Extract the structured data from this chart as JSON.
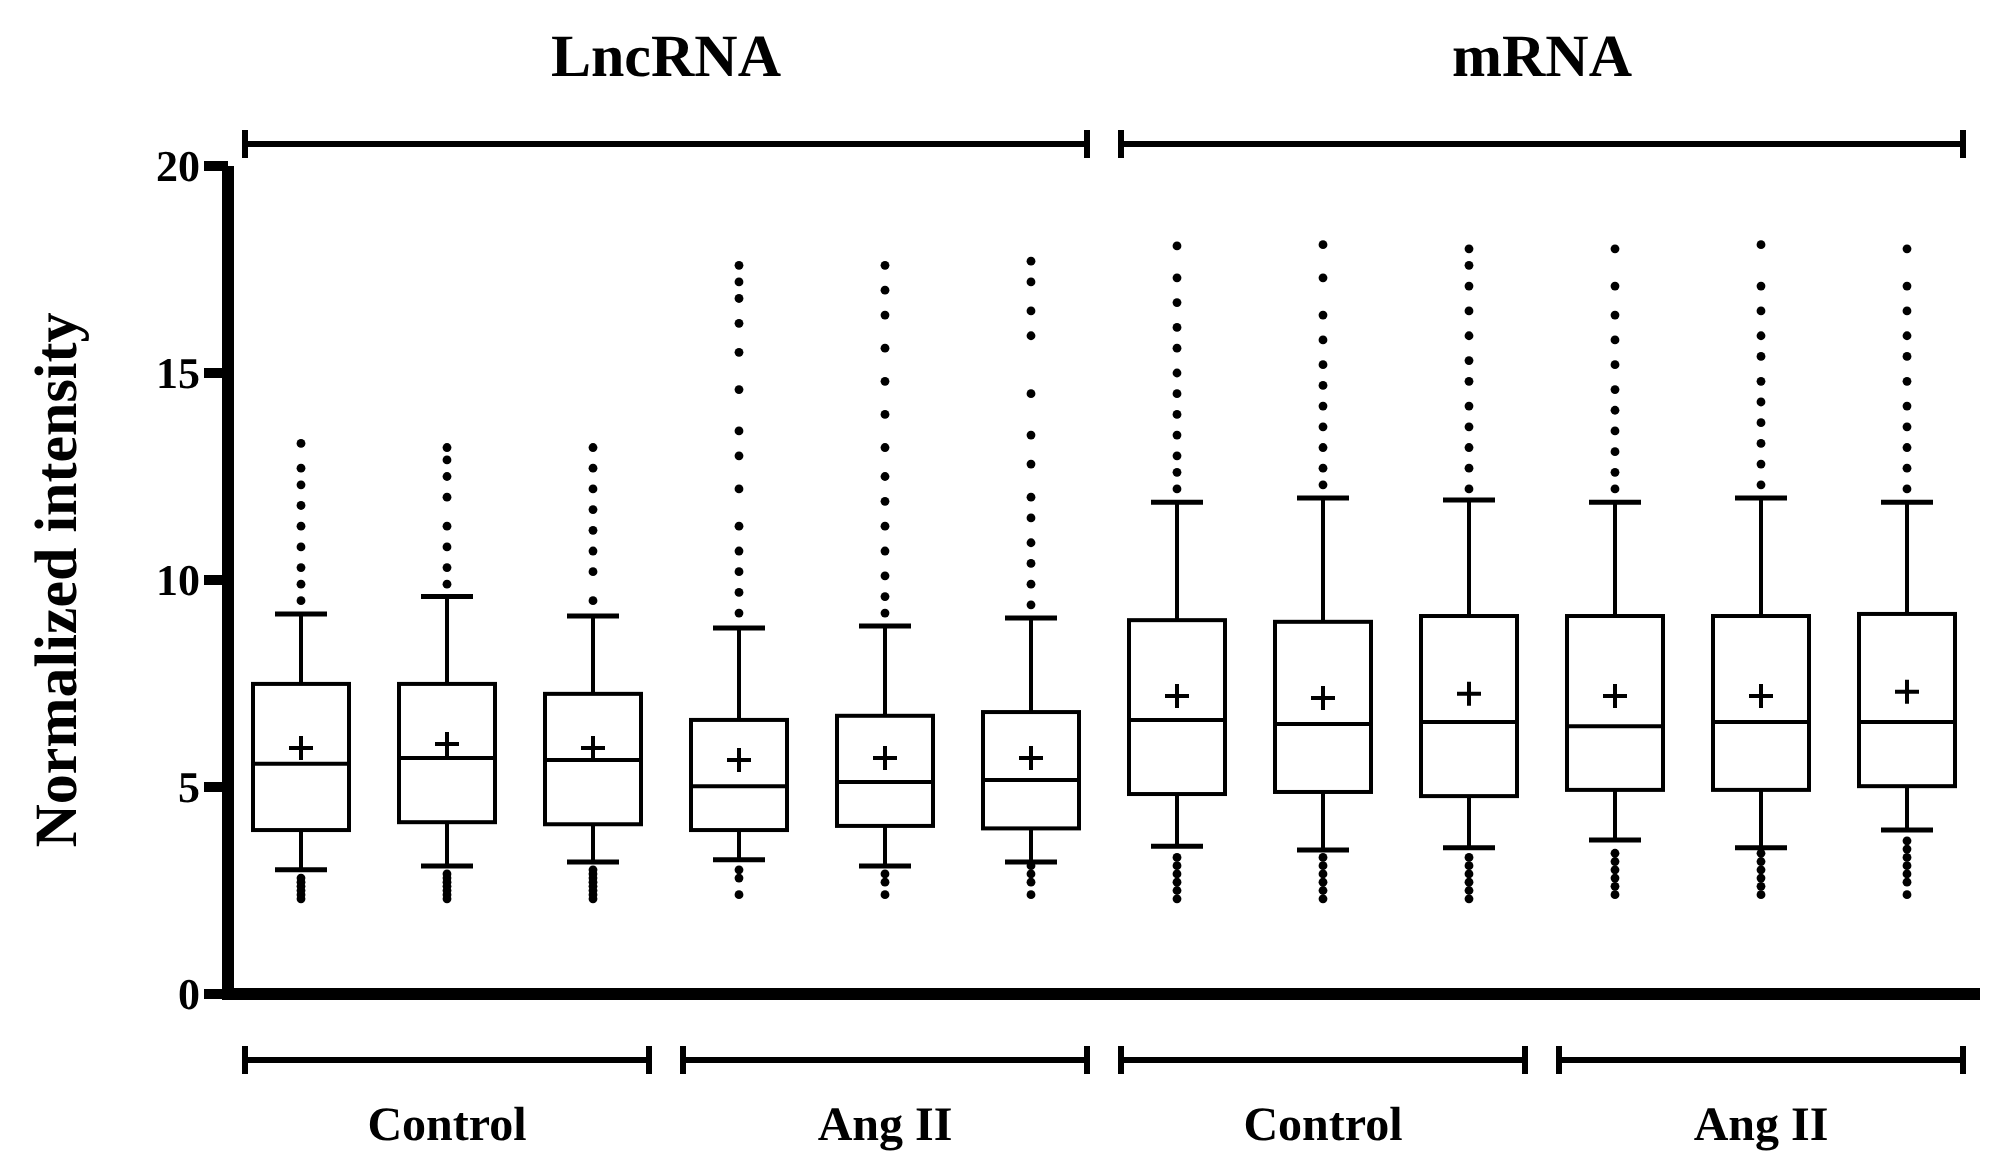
{
  "chart_data": {
    "type": "box",
    "ylabel": "Normalized intensity",
    "categories": [
      null,
      null,
      null,
      null,
      null,
      null,
      null,
      null,
      null,
      null,
      null,
      null
    ],
    "ylim": [
      0,
      20
    ],
    "yticks": [
      0,
      5,
      10,
      15,
      20
    ],
    "grid": false,
    "annotations": [
      "LncRNA",
      "mRNA",
      "Control",
      "Ang II",
      "Control",
      "Ang II"
    ],
    "boxes": [
      {
        "low": 3.0,
        "q1": 3.96,
        "median": 5.56,
        "q3": 7.49,
        "high": 9.18,
        "mean": 5.94,
        "outliers": [
          2.3,
          2.4,
          2.5,
          2.6,
          2.7,
          2.8,
          9.5,
          9.9,
          10.3,
          10.8,
          11.3,
          11.8,
          12.3,
          12.7,
          13.3
        ]
      },
      {
        "low": 3.09,
        "q1": 4.15,
        "median": 5.7,
        "q3": 7.49,
        "high": 9.6,
        "mean": 6.04,
        "outliers": [
          2.3,
          2.4,
          2.5,
          2.6,
          2.7,
          2.8,
          2.9,
          9.9,
          10.3,
          10.8,
          11.3,
          12.0,
          12.5,
          12.9,
          13.2
        ]
      },
      {
        "low": 3.19,
        "q1": 4.1,
        "median": 5.65,
        "q3": 7.25,
        "high": 9.13,
        "mean": 5.94,
        "outliers": [
          2.3,
          2.4,
          2.5,
          2.6,
          2.7,
          2.8,
          2.9,
          3.0,
          9.5,
          10.2,
          10.7,
          11.2,
          11.7,
          12.2,
          12.7,
          13.2
        ]
      },
      {
        "low": 3.24,
        "q1": 3.96,
        "median": 5.02,
        "q3": 6.62,
        "high": 8.84,
        "mean": 5.65,
        "outliers": [
          2.4,
          2.8,
          3.0,
          9.2,
          9.7,
          10.2,
          10.7,
          11.3,
          12.2,
          13.0,
          13.6,
          14.6,
          15.5,
          16.2,
          16.8,
          17.2,
          17.6
        ]
      },
      {
        "low": 3.09,
        "q1": 4.06,
        "median": 5.12,
        "q3": 6.72,
        "high": 8.89,
        "mean": 5.7,
        "outliers": [
          2.4,
          2.7,
          2.9,
          9.2,
          9.6,
          10.1,
          10.7,
          11.3,
          11.9,
          12.5,
          13.2,
          14.0,
          14.8,
          15.6,
          16.4,
          17.0,
          17.6
        ]
      },
      {
        "low": 3.19,
        "q1": 4.0,
        "median": 5.17,
        "q3": 6.81,
        "high": 9.08,
        "mean": 5.7,
        "outliers": [
          2.4,
          2.7,
          2.9,
          3.1,
          9.4,
          9.9,
          10.4,
          10.9,
          11.5,
          12.0,
          12.8,
          13.5,
          14.5,
          15.9,
          16.5,
          17.2,
          17.7
        ]
      },
      {
        "low": 3.57,
        "q1": 4.83,
        "median": 6.62,
        "q3": 9.03,
        "high": 11.88,
        "mean": 7.2,
        "outliers": [
          2.3,
          2.5,
          2.7,
          2.9,
          3.1,
          3.3,
          12.2,
          12.6,
          13.0,
          13.5,
          14.0,
          14.5,
          15.0,
          15.6,
          16.1,
          16.7,
          17.3,
          18.07
        ]
      },
      {
        "low": 3.48,
        "q1": 4.88,
        "median": 6.52,
        "q3": 8.99,
        "high": 11.98,
        "mean": 7.15,
        "outliers": [
          2.3,
          2.5,
          2.7,
          2.9,
          3.1,
          3.3,
          12.3,
          12.7,
          13.2,
          13.7,
          14.2,
          14.7,
          15.2,
          15.8,
          16.4,
          17.3,
          18.1
        ]
      },
      {
        "low": 3.53,
        "q1": 4.78,
        "median": 6.57,
        "q3": 9.13,
        "high": 11.93,
        "mean": 7.25,
        "outliers": [
          2.3,
          2.5,
          2.7,
          2.9,
          3.1,
          3.3,
          12.2,
          12.7,
          13.2,
          13.7,
          14.2,
          14.8,
          15.3,
          15.9,
          16.5,
          17.1,
          17.6,
          18.0
        ]
      },
      {
        "low": 3.72,
        "q1": 4.93,
        "median": 6.47,
        "q3": 9.13,
        "high": 11.88,
        "mean": 7.2,
        "outliers": [
          2.4,
          2.6,
          2.8,
          3.0,
          3.2,
          3.4,
          12.2,
          12.6,
          13.1,
          13.6,
          14.1,
          14.6,
          15.2,
          15.8,
          16.4,
          17.1,
          18.0
        ]
      },
      {
        "low": 3.53,
        "q1": 4.93,
        "median": 6.57,
        "q3": 9.13,
        "high": 11.98,
        "mean": 7.2,
        "outliers": [
          2.4,
          2.6,
          2.8,
          3.0,
          3.2,
          3.4,
          12.3,
          12.8,
          13.3,
          13.8,
          14.3,
          14.8,
          15.4,
          15.9,
          16.5,
          17.1,
          18.1
        ]
      },
      {
        "low": 3.96,
        "q1": 5.02,
        "median": 6.57,
        "q3": 9.18,
        "high": 11.88,
        "mean": 7.3,
        "outliers": [
          2.4,
          2.7,
          2.9,
          3.1,
          3.3,
          3.5,
          3.7,
          12.2,
          12.7,
          13.2,
          13.7,
          14.2,
          14.8,
          15.4,
          15.9,
          16.5,
          17.1,
          18.0
        ]
      }
    ]
  }
}
